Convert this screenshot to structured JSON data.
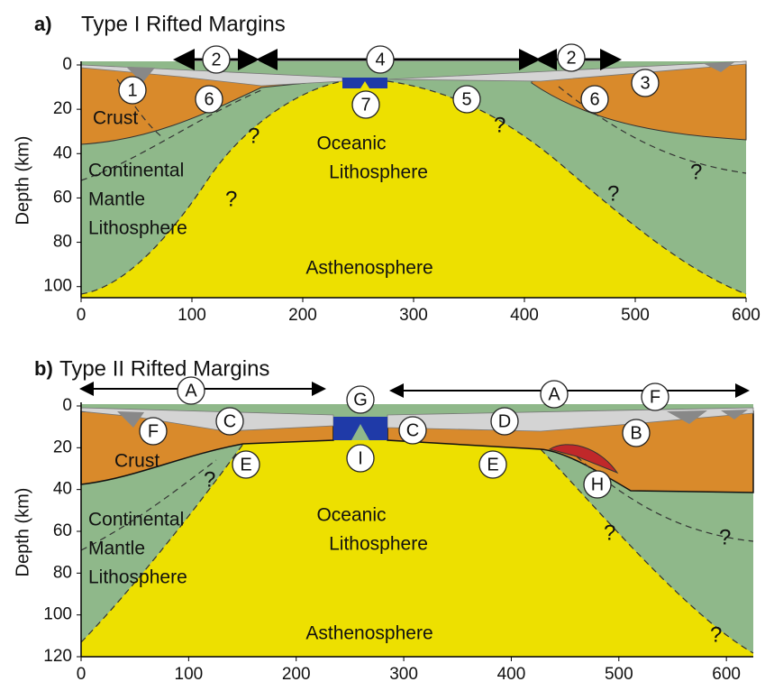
{
  "panels": [
    {
      "label": "a)",
      "title": "Type I Rifted Margins",
      "y_label": "Depth (km)",
      "xlim": [
        0,
        600
      ],
      "ylim": [
        0,
        105
      ],
      "xticks": [
        0,
        100,
        200,
        300,
        400,
        500,
        600
      ],
      "yticks": [
        0,
        20,
        40,
        60,
        80,
        100
      ],
      "regions": [
        "Crust",
        "Continental",
        "Mantle",
        "Lithosphere",
        "Oceanic",
        "Lithosphere",
        "Asthenosphere"
      ],
      "markers": [
        "2",
        "4",
        "2",
        "1",
        "6",
        "7",
        "5",
        "6",
        "3"
      ],
      "queries": [
        "?",
        "?",
        "?",
        "?",
        "?"
      ]
    },
    {
      "label": "b)",
      "title": "Type II Rifted Margins",
      "y_label": "Depth (km)",
      "xlim": [
        0,
        625
      ],
      "ylim": [
        0,
        120
      ],
      "xticks": [
        0,
        100,
        200,
        300,
        400,
        500,
        600
      ],
      "yticks": [
        0,
        20,
        40,
        60,
        80,
        100,
        120
      ],
      "regions": [
        "Crust",
        "Continental",
        "Mantle",
        "Lithosphere",
        "Oceanic",
        "Lithosphere",
        "Asthenosphere"
      ],
      "markers": [
        "A",
        "G",
        "A",
        "F",
        "F",
        "C",
        "C",
        "D",
        "B",
        "E",
        "I",
        "E",
        "H"
      ],
      "queries": [
        "?",
        "?",
        "?",
        "?"
      ]
    }
  ]
}
